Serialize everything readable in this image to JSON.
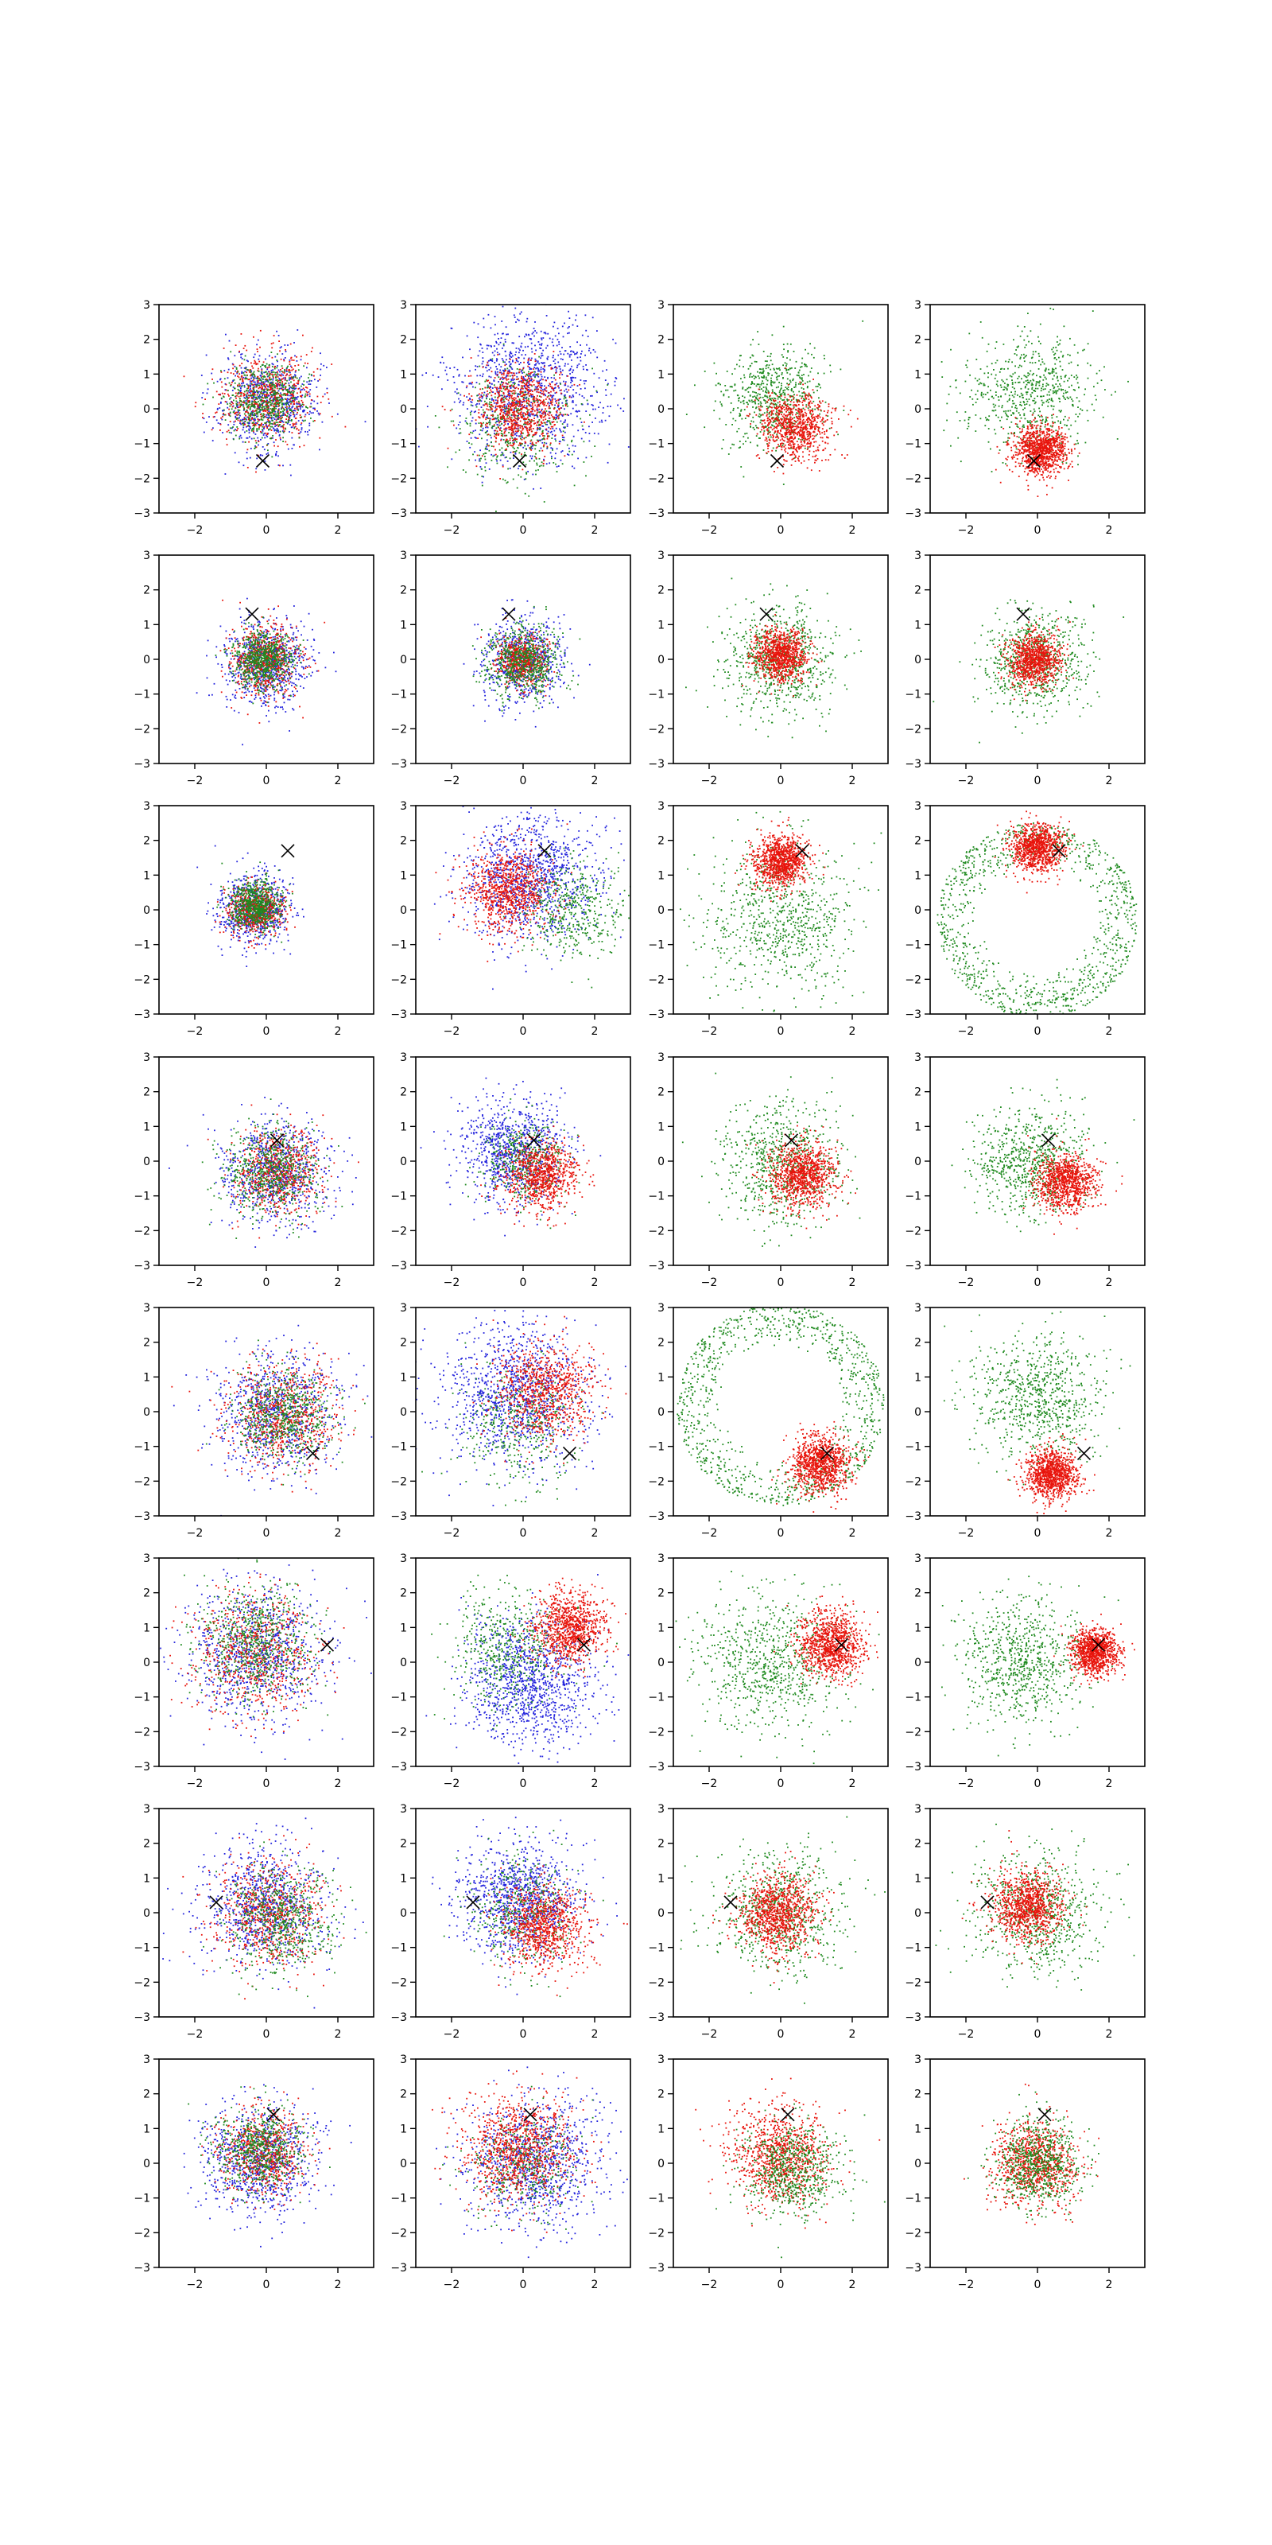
{
  "figure": {
    "rows": 8,
    "cols": 4,
    "axis_color": "#000000",
    "background": "#ffffff"
  },
  "chart_data": {
    "type": "scatter",
    "layout": "8 rows x 4 columns grid of scatter subplots",
    "xlim": [
      -3,
      3
    ],
    "ylim": [
      -3,
      3
    ],
    "xticks": [
      -2,
      0,
      2
    ],
    "yticks": [
      -3,
      -2,
      -1,
      0,
      1,
      2,
      3
    ],
    "xtick_labels": [
      "−2",
      "0",
      "2"
    ],
    "ytick_labels": [
      "−3",
      "−2",
      "−1",
      "0",
      "1",
      "2",
      "3"
    ],
    "grid": false,
    "legend": "none",
    "title": "",
    "xlabel": "",
    "ylabel": "",
    "colors": {
      "red": "#e8140c",
      "green": "#1f8a1f",
      "blue": "#2424dd",
      "marker": "#000000"
    },
    "marker_symbol": "x",
    "rows": [
      {
        "marker": [
          -0.1,
          -1.5
        ],
        "panels": [
          {
            "clouds": [
              {
                "color": "blue",
                "cx": 0,
                "cy": 0.2,
                "r": 1.5,
                "n": 750
              },
              {
                "color": "red",
                "cx": 0,
                "cy": 0.3,
                "r": 1.4,
                "n": 650
              },
              {
                "color": "green",
                "cx": 0,
                "cy": 0.2,
                "r": 1.2,
                "n": 550
              }
            ]
          },
          {
            "clouds": [
              {
                "color": "blue",
                "cx": 0.2,
                "cy": 0.6,
                "r": 2.3,
                "n": 1100
              },
              {
                "color": "green",
                "cx": -0.2,
                "cy": -0.5,
                "r": 1.8,
                "n": 450
              },
              {
                "color": "red",
                "cx": -0.1,
                "cy": 0,
                "r": 1.3,
                "n": 800
              }
            ]
          },
          {
            "clouds": [
              {
                "color": "green",
                "cx": -0.2,
                "cy": 0.3,
                "r": 1.6,
                "n": 650
              },
              {
                "color": "red",
                "cx": 0.4,
                "cy": -0.5,
                "r": 1.1,
                "n": 800
              }
            ]
          },
          {
            "clouds": [
              {
                "color": "green",
                "cx": -0.2,
                "cy": 0.4,
                "r": 1.9,
                "n": 650
              },
              {
                "color": "red",
                "cx": 0.1,
                "cy": -1.2,
                "r": 0.8,
                "n": 1000
              }
            ]
          }
        ]
      },
      {
        "marker": [
          -0.4,
          1.3
        ],
        "panels": [
          {
            "clouds": [
              {
                "color": "blue",
                "cx": 0,
                "cy": -0.1,
                "r": 1.3,
                "n": 750
              },
              {
                "color": "red",
                "cx": 0,
                "cy": 0,
                "r": 1.1,
                "n": 600
              },
              {
                "color": "green",
                "cx": -0.1,
                "cy": 0,
                "r": 0.9,
                "n": 650
              }
            ]
          },
          {
            "clouds": [
              {
                "color": "blue",
                "cx": 0,
                "cy": 0,
                "r": 1.3,
                "n": 700
              },
              {
                "color": "red",
                "cx": 0,
                "cy": 0,
                "r": 0.8,
                "n": 550
              },
              {
                "color": "green",
                "cx": 0,
                "cy": -0.1,
                "r": 1.1,
                "n": 650
              }
            ]
          },
          {
            "clouds": [
              {
                "color": "green",
                "cx": 0,
                "cy": 0,
                "r": 1.7,
                "n": 750
              },
              {
                "color": "red",
                "cx": 0,
                "cy": 0.1,
                "r": 0.8,
                "n": 900
              }
            ]
          },
          {
            "clouds": [
              {
                "color": "green",
                "cx": 0,
                "cy": 0,
                "r": 1.6,
                "n": 700
              },
              {
                "color": "red",
                "cx": -0.1,
                "cy": 0,
                "r": 0.8,
                "n": 900
              }
            ]
          }
        ]
      },
      {
        "marker": [
          0.6,
          1.7
        ],
        "panels": [
          {
            "clouds": [
              {
                "color": "blue",
                "cx": -0.3,
                "cy": 0,
                "r": 1.1,
                "n": 700
              },
              {
                "color": "red",
                "cx": -0.3,
                "cy": 0,
                "r": 0.8,
                "n": 550
              },
              {
                "color": "green",
                "cx": -0.3,
                "cy": 0.1,
                "r": 0.8,
                "n": 650
              }
            ]
          },
          {
            "clouds": [
              {
                "color": "blue",
                "cx": 0.2,
                "cy": 0.9,
                "r": 2,
                "n": 1100
              },
              {
                "color": "green",
                "cx": 1.3,
                "cy": 0,
                "r": 1.5,
                "n": 450
              },
              {
                "color": "red",
                "cx": -0.4,
                "cy": 0.6,
                "r": 1.3,
                "n": 850
              }
            ]
          },
          {
            "clouds": [
              {
                "color": "green",
                "cx": 0,
                "cy": -0.3,
                "r": 2.3,
                "n": 750
              },
              {
                "color": "red",
                "cx": 0,
                "cy": 1.4,
                "r": 0.8,
                "n": 1000
              }
            ]
          },
          {
            "clouds": [
              {
                "color": "green",
                "cx": 0,
                "cy": -0.3,
                "r": 2.8,
                "ring": true,
                "n": 1000
              },
              {
                "color": "red",
                "cx": 0,
                "cy": 1.8,
                "r": 0.8,
                "n": 950
              }
            ]
          }
        ]
      },
      {
        "marker": [
          0.3,
          0.6
        ],
        "panels": [
          {
            "clouds": [
              {
                "color": "blue",
                "cx": 0.2,
                "cy": -0.3,
                "r": 1.6,
                "n": 800
              },
              {
                "color": "red",
                "cx": 0.3,
                "cy": -0.3,
                "r": 1.3,
                "n": 650
              },
              {
                "color": "green",
                "cx": 0.1,
                "cy": -0.3,
                "r": 1.4,
                "n": 600
              }
            ]
          },
          {
            "clouds": [
              {
                "color": "blue",
                "cx": -0.3,
                "cy": 0.3,
                "r": 1.6,
                "n": 900
              },
              {
                "color": "green",
                "cx": 0,
                "cy": 0,
                "r": 1.3,
                "n": 400
              },
              {
                "color": "red",
                "cx": 0.5,
                "cy": -0.4,
                "r": 1.1,
                "n": 800
              }
            ]
          },
          {
            "clouds": [
              {
                "color": "green",
                "cx": 0,
                "cy": 0,
                "r": 1.9,
                "n": 700
              },
              {
                "color": "red",
                "cx": 0.6,
                "cy": -0.4,
                "r": 1,
                "n": 950
              }
            ]
          },
          {
            "clouds": [
              {
                "color": "green",
                "cx": -0.2,
                "cy": 0,
                "r": 1.7,
                "n": 700
              },
              {
                "color": "red",
                "cx": 0.8,
                "cy": -0.6,
                "r": 0.9,
                "n": 950
              }
            ]
          }
        ]
      },
      {
        "marker": [
          1.3,
          -1.2
        ],
        "panels": [
          {
            "clouds": [
              {
                "color": "blue",
                "cx": 0.3,
                "cy": 0,
                "r": 1.9,
                "n": 800
              },
              {
                "color": "red",
                "cx": 0.5,
                "cy": -0.1,
                "r": 1.6,
                "n": 700
              },
              {
                "color": "green",
                "cx": 0.5,
                "cy": -0.1,
                "r": 1.5,
                "n": 600
              }
            ]
          },
          {
            "clouds": [
              {
                "color": "blue",
                "cx": -0.2,
                "cy": 0.5,
                "r": 2.3,
                "n": 1100
              },
              {
                "color": "green",
                "cx": 0,
                "cy": -0.4,
                "r": 1.8,
                "n": 400
              },
              {
                "color": "red",
                "cx": 0.6,
                "cy": 0.6,
                "r": 1.5,
                "n": 800
              }
            ]
          },
          {
            "clouds": [
              {
                "color": "green",
                "cx": 0,
                "cy": 0.2,
                "r": 2.9,
                "ring": true,
                "n": 1000
              },
              {
                "color": "red",
                "cx": 1.1,
                "cy": -1.5,
                "r": 0.9,
                "n": 1000
              }
            ]
          },
          {
            "clouds": [
              {
                "color": "green",
                "cx": 0,
                "cy": 0.4,
                "r": 2,
                "n": 750
              },
              {
                "color": "red",
                "cx": 0.4,
                "cy": -1.8,
                "r": 0.8,
                "n": 1000
              }
            ]
          }
        ]
      },
      {
        "marker": [
          1.7,
          0.5
        ],
        "panels": [
          {
            "clouds": [
              {
                "color": "blue",
                "cx": -0.3,
                "cy": 0.3,
                "r": 2.1,
                "n": 900
              },
              {
                "color": "red",
                "cx": -0.3,
                "cy": 0.3,
                "r": 1.9,
                "n": 700
              },
              {
                "color": "green",
                "cx": -0.3,
                "cy": 0.6,
                "r": 1.8,
                "n": 650
              }
            ]
          },
          {
            "clouds": [
              {
                "color": "blue",
                "cx": 0.2,
                "cy": -0.6,
                "r": 2,
                "n": 1100
              },
              {
                "color": "green",
                "cx": -0.4,
                "cy": 0.4,
                "r": 1.8,
                "n": 500
              },
              {
                "color": "red",
                "cx": 1.3,
                "cy": 1,
                "r": 1.1,
                "n": 900
              }
            ]
          },
          {
            "clouds": [
              {
                "color": "green",
                "cx": -0.3,
                "cy": 0,
                "r": 2.2,
                "n": 750
              },
              {
                "color": "red",
                "cx": 1.4,
                "cy": 0.5,
                "r": 1,
                "n": 1000
              }
            ]
          },
          {
            "clouds": [
              {
                "color": "green",
                "cx": -0.4,
                "cy": 0,
                "r": 2,
                "n": 750
              },
              {
                "color": "red",
                "cx": 1.6,
                "cy": 0.3,
                "r": 0.7,
                "n": 1000
              }
            ]
          }
        ]
      },
      {
        "marker": [
          -1.4,
          0.3
        ],
        "panels": [
          {
            "clouds": [
              {
                "color": "blue",
                "cx": 0,
                "cy": 0.2,
                "r": 1.9,
                "n": 850
              },
              {
                "color": "red",
                "cx": 0.1,
                "cy": 0,
                "r": 1.7,
                "n": 650
              },
              {
                "color": "green",
                "cx": 0.4,
                "cy": -0.2,
                "r": 1.6,
                "n": 600
              }
            ]
          },
          {
            "clouds": [
              {
                "color": "blue",
                "cx": -0.1,
                "cy": 0.4,
                "r": 1.8,
                "n": 1000
              },
              {
                "color": "green",
                "cx": 0,
                "cy": 0,
                "r": 1.6,
                "n": 400
              },
              {
                "color": "red",
                "cx": 0.6,
                "cy": -0.4,
                "r": 1.3,
                "n": 850
              }
            ]
          },
          {
            "clouds": [
              {
                "color": "green",
                "cx": 0,
                "cy": 0,
                "r": 2,
                "n": 700
              },
              {
                "color": "red",
                "cx": -0.1,
                "cy": 0,
                "r": 1.2,
                "n": 950
              }
            ]
          },
          {
            "clouds": [
              {
                "color": "green",
                "cx": 0,
                "cy": 0,
                "r": 2,
                "n": 700
              },
              {
                "color": "red",
                "cx": -0.3,
                "cy": 0.2,
                "r": 1.1,
                "n": 950
              }
            ]
          }
        ]
      },
      {
        "marker": [
          0.2,
          1.4
        ],
        "panels": [
          {
            "clouds": [
              {
                "color": "blue",
                "cx": -0.2,
                "cy": 0.1,
                "r": 1.7,
                "n": 850
              },
              {
                "color": "red",
                "cx": -0.1,
                "cy": 0.3,
                "r": 1.3,
                "n": 650
              },
              {
                "color": "green",
                "cx": -0.2,
                "cy": 0.4,
                "r": 1.3,
                "n": 600
              }
            ]
          },
          {
            "clouds": [
              {
                "color": "blue",
                "cx": 0.4,
                "cy": 0,
                "r": 2,
                "n": 1000
              },
              {
                "color": "green",
                "cx": 0,
                "cy": 0,
                "r": 1.6,
                "n": 400
              },
              {
                "color": "red",
                "cx": -0.1,
                "cy": 0.4,
                "r": 1.7,
                "n": 900
              }
            ]
          },
          {
            "clouds": [
              {
                "color": "red",
                "cx": 0,
                "cy": 0.2,
                "r": 1.5,
                "n": 950
              },
              {
                "color": "green",
                "cx": 0.4,
                "cy": -0.2,
                "r": 1.5,
                "n": 650
              }
            ]
          },
          {
            "clouds": [
              {
                "color": "red",
                "cx": 0,
                "cy": 0,
                "r": 1.3,
                "n": 900
              },
              {
                "color": "green",
                "cx": 0,
                "cy": 0,
                "r": 1.3,
                "n": 700
              }
            ]
          }
        ]
      }
    ]
  }
}
